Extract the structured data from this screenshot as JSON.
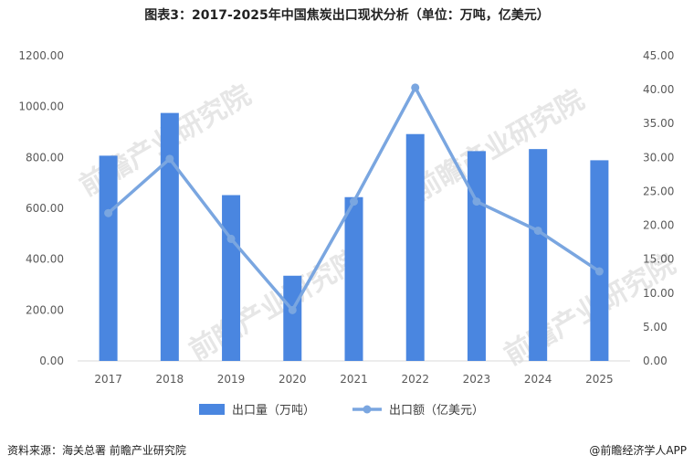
{
  "chart_data": {
    "type": "bar",
    "title": "图表3：2017-2025年中国焦炭出口现状分析（单位：万吨，亿美元）",
    "categories": [
      "2017",
      "2018",
      "2019",
      "2020",
      "2021",
      "2022",
      "2023",
      "2024",
      "2025"
    ],
    "series": [
      {
        "name": "出口量（万吨）",
        "type": "bar",
        "axis": "left",
        "color": "#4a86e0",
        "values": [
          807,
          975,
          652,
          335,
          644,
          892,
          825,
          833,
          789
        ]
      },
      {
        "name": "出口额（亿美元）",
        "type": "line",
        "axis": "right",
        "color": "#7aa6e0",
        "values": [
          21.8,
          29.8,
          18.0,
          7.5,
          23.5,
          40.3,
          23.5,
          19.2,
          13.2
        ]
      }
    ],
    "y_left": {
      "ylim": [
        0,
        1200
      ],
      "ticks": [
        "0.00",
        "200.00",
        "400.00",
        "600.00",
        "800.00",
        "1000.00",
        "1200.00"
      ]
    },
    "y_right": {
      "ylim": [
        0,
        45
      ],
      "ticks": [
        "0.00",
        "5.00",
        "10.00",
        "15.00",
        "20.00",
        "25.00",
        "30.00",
        "35.00",
        "40.00",
        "45.00"
      ]
    },
    "legend_position": "bottom",
    "grid": false
  },
  "footer": {
    "source": "资料来源：海关总署  前瞻产业研究院",
    "brand": "@前瞻经济学人APP"
  },
  "watermark": "前瞻产业研究院"
}
